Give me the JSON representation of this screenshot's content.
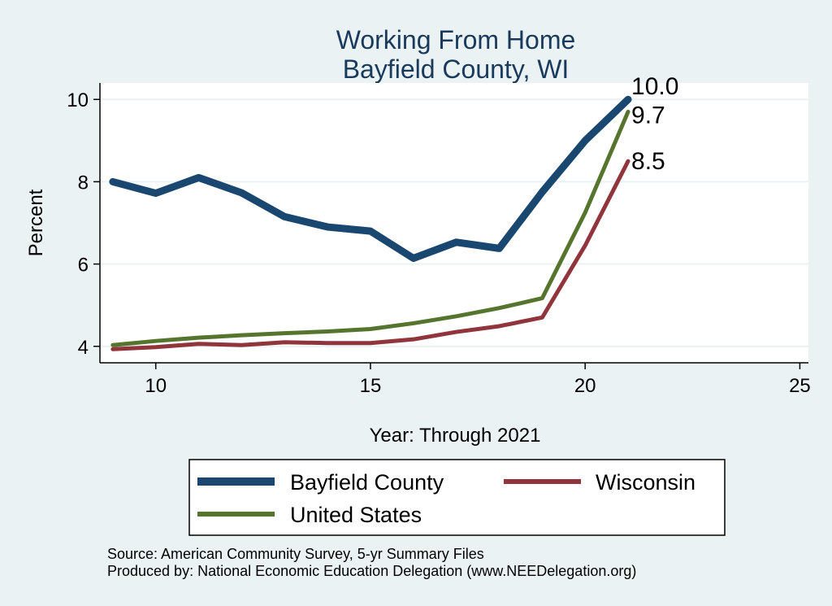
{
  "chart_data": {
    "type": "line",
    "title": [
      "Working From Home",
      "Bayfield County, WI"
    ],
    "xlabel": "Year: Through 2021",
    "ylabel": "Percent",
    "xlim": [
      8.7,
      25.2
    ],
    "ylim": [
      3.6,
      10.4
    ],
    "xticks": [
      10,
      15,
      20,
      25
    ],
    "yticks": [
      4,
      6,
      8,
      10
    ],
    "grid": "horizontal",
    "legend_position": "bottom",
    "series": [
      {
        "name": "Bayfield County",
        "color": "#1a476f",
        "width": 9,
        "x": [
          9,
          10,
          11,
          12,
          13,
          14,
          15,
          16,
          17,
          18,
          19,
          20,
          21
        ],
        "y": [
          8.0,
          7.72,
          8.1,
          7.73,
          7.15,
          6.9,
          6.8,
          6.14,
          6.53,
          6.38,
          7.75,
          9.0,
          10.0
        ],
        "end_label": "10.0"
      },
      {
        "name": "Wisconsin",
        "color": "#90353b",
        "width": 5,
        "x": [
          9,
          10,
          11,
          12,
          13,
          14,
          15,
          16,
          17,
          18,
          19,
          20,
          21
        ],
        "y": [
          3.93,
          3.98,
          4.06,
          4.03,
          4.1,
          4.08,
          4.08,
          4.17,
          4.35,
          4.49,
          4.7,
          6.45,
          8.5
        ],
        "end_label": "8.5"
      },
      {
        "name": "United States",
        "color": "#55752f",
        "width": 5,
        "x": [
          9,
          10,
          11,
          12,
          13,
          14,
          15,
          16,
          17,
          18,
          19,
          20,
          21
        ],
        "y": [
          4.03,
          4.13,
          4.21,
          4.27,
          4.32,
          4.36,
          4.42,
          4.56,
          4.73,
          4.93,
          5.17,
          7.25,
          9.7
        ],
        "end_label": "9.7"
      }
    ]
  },
  "footer": {
    "source": "Source: American Community Survey, 5-yr Summary Files",
    "produced_by": "Produced by: National Economic Education Delegation (www.NEEDelegation.org)"
  }
}
